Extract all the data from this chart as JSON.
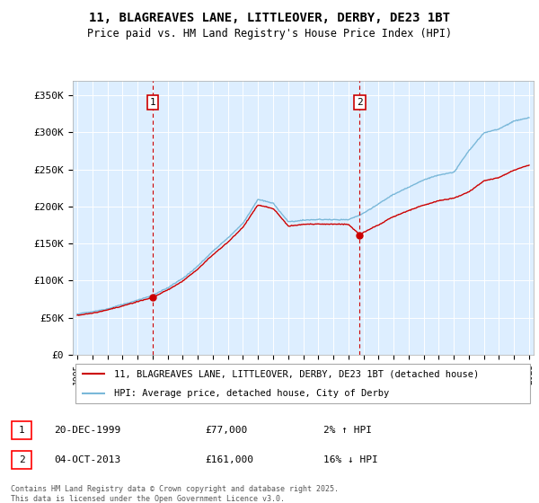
{
  "title_line1": "11, BLAGREAVES LANE, LITTLEOVER, DERBY, DE23 1BT",
  "title_line2": "Price paid vs. HM Land Registry's House Price Index (HPI)",
  "ylabel_ticks": [
    "£0",
    "£50K",
    "£100K",
    "£150K",
    "£200K",
    "£250K",
    "£300K",
    "£350K"
  ],
  "y_values": [
    0,
    50000,
    100000,
    150000,
    200000,
    250000,
    300000,
    350000
  ],
  "ylim": [
    0,
    370000
  ],
  "x_start_year": 1995,
  "x_end_year": 2025,
  "hpi_color": "#7ab8d9",
  "price_color": "#cc0000",
  "dashed_color": "#cc0000",
  "background_color": "#ddeeff",
  "marker1_year": 2000.0,
  "marker2_year": 2013.75,
  "marker1_label": "1",
  "marker2_label": "2",
  "legend_line1": "11, BLAGREAVES LANE, LITTLEOVER, DERBY, DE23 1BT (detached house)",
  "legend_line2": "HPI: Average price, detached house, City of Derby",
  "note1_label": "1",
  "note1_date": "20-DEC-1999",
  "note1_price": "£77,000",
  "note1_change": "2% ↑ HPI",
  "note2_label": "2",
  "note2_date": "04-OCT-2013",
  "note2_price": "£161,000",
  "note2_change": "16% ↓ HPI",
  "footer": "Contains HM Land Registry data © Crown copyright and database right 2025.\nThis data is licensed under the Open Government Licence v3.0.",
  "purchase1_year": 2000.0,
  "purchase1_price": 77000,
  "purchase2_year": 2013.75,
  "purchase2_price": 161000
}
